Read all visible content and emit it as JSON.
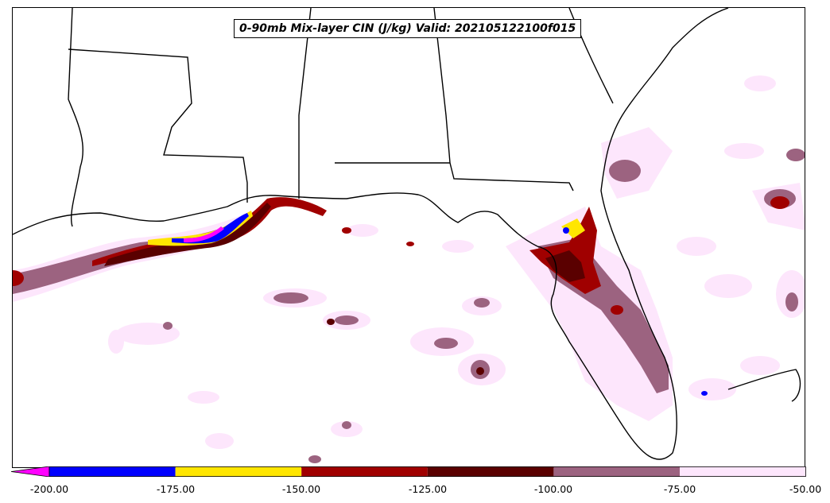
{
  "map": {
    "title": "0-90mb Mix-layer CIN (J/kg) Valid: 202105122100f015",
    "region": "Gulf of Mexico / Southeastern United States",
    "variable": "0-90mb Mix-layer CIN",
    "units": "J/kg",
    "valid_time": "202105122100",
    "forecast_hour": "f015"
  },
  "colorbar": {
    "extend": "min",
    "levels": [
      -200,
      -175,
      -150,
      -125,
      -100,
      -75,
      -50
    ],
    "tick_labels": [
      "-200.00",
      "-175.00",
      "-150.00",
      "-125.00",
      "-100.00",
      "-75.00",
      "-50.00"
    ],
    "colors": [
      {
        "range": "< -200",
        "color": "#ff00ff"
      },
      {
        "range": "-200 to -175",
        "color": "#0000ff"
      },
      {
        "range": "-175 to -150",
        "color": "#ffe600"
      },
      {
        "range": "-150 to -125",
        "color": "#a00000"
      },
      {
        "range": "-125 to -100",
        "color": "#5a0000"
      },
      {
        "range": "-100 to -75",
        "color": "#9c6380"
      },
      {
        "range": "-75 to -50",
        "color": "#fde6fc"
      }
    ]
  }
}
